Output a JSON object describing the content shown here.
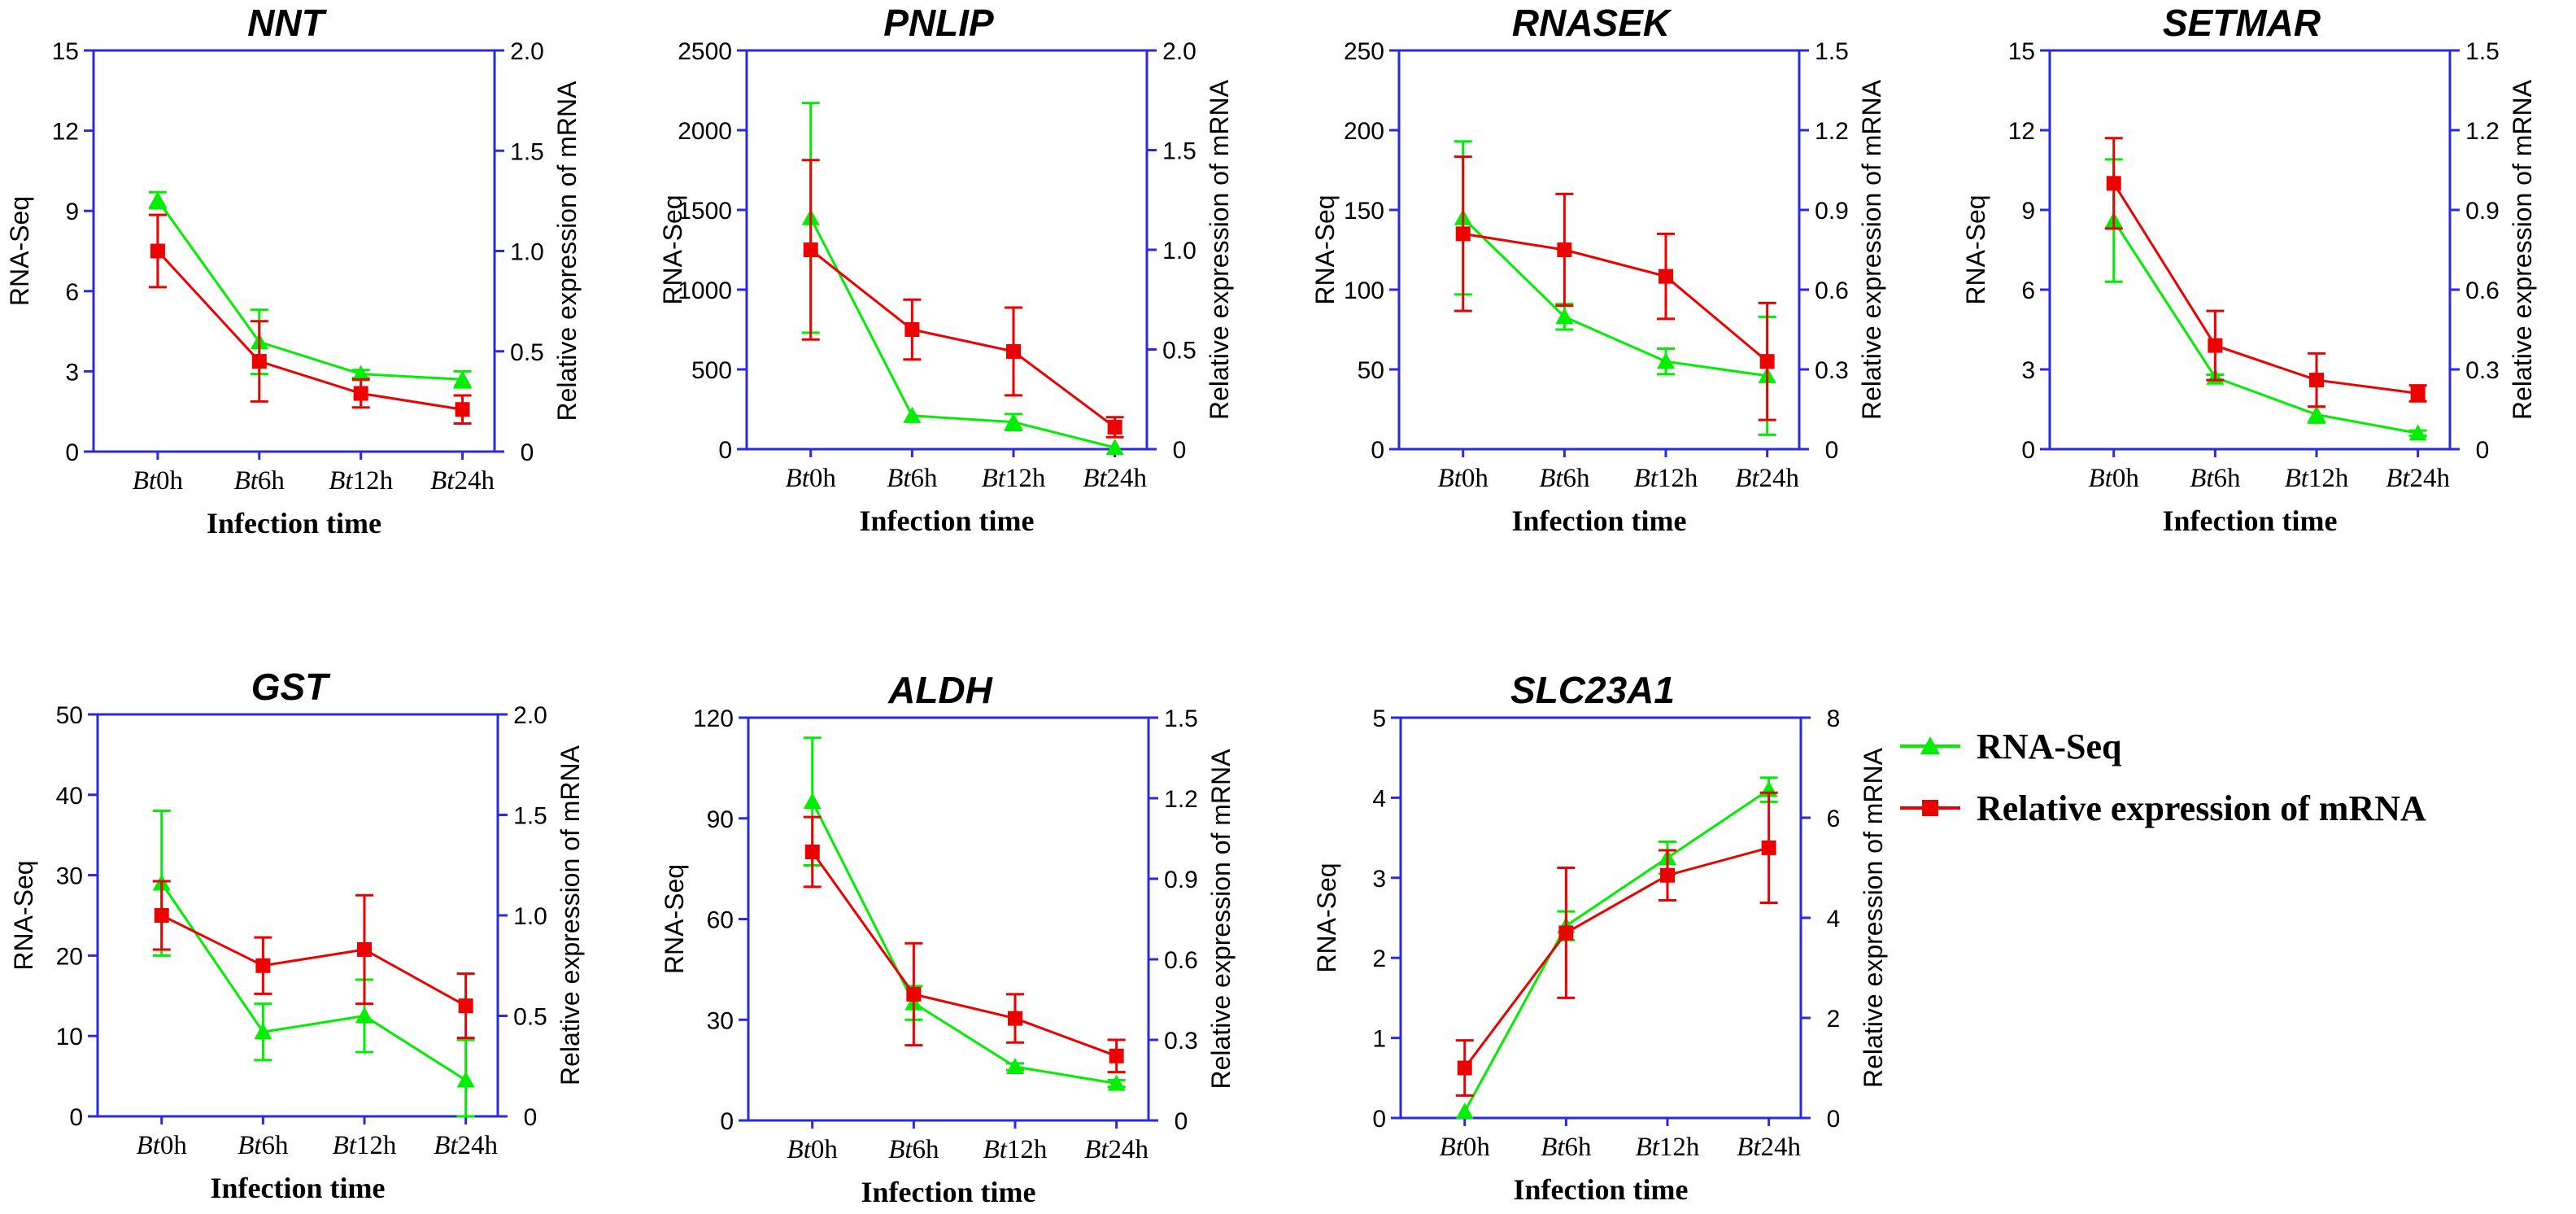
{
  "chart_data": [
    {
      "type": "line",
      "title": "NNT",
      "categories": [
        "Bt0h",
        "Bt6h",
        "Bt12h",
        "Bt24h"
      ],
      "xlabel": "Infection time",
      "ylabel": "RNA-Seq",
      "y2label": "Relative expression of mRNA",
      "ylim": [
        0,
        15
      ],
      "yticks": [
        "0",
        "3",
        "6",
        "9",
        "12",
        "15"
      ],
      "y2lim": [
        0,
        2.0
      ],
      "y2ticks": [
        "0",
        "0.5",
        "1.0",
        "1.5",
        "2.0"
      ],
      "series": [
        {
          "name": "RNA-Seq",
          "axis": "left",
          "color": "#00ee00",
          "marker": "triangle",
          "values": [
            9.4,
            4.1,
            2.9,
            2.7
          ],
          "errors": [
            0.3,
            1.2,
            0.15,
            0.3
          ]
        },
        {
          "name": "Relative expression of mRNA",
          "axis": "right",
          "color": "#ee0000",
          "marker": "square",
          "values": [
            1.0,
            0.45,
            0.29,
            0.21
          ],
          "errors": [
            0.18,
            0.2,
            0.07,
            0.07
          ]
        }
      ]
    },
    {
      "type": "line",
      "title": "PNLIP",
      "categories": [
        "Bt0h",
        "Bt6h",
        "Bt12h",
        "Bt24h"
      ],
      "xlabel": "Infection time",
      "ylabel": "RNA-Seq",
      "y2label": "Relative expression of mRNA",
      "ylim": [
        0,
        2500
      ],
      "yticks": [
        "0",
        "500",
        "1000",
        "1500",
        "2000",
        "2500"
      ],
      "y2lim": [
        0,
        2.0
      ],
      "y2ticks": [
        "0",
        "0.5",
        "1.0",
        "1.5",
        "2.0"
      ],
      "series": [
        {
          "name": "RNA-Seq",
          "axis": "left",
          "color": "#00ee00",
          "marker": "triangle",
          "values": [
            1450,
            210,
            170,
            10
          ],
          "errors": [
            720,
            0,
            50,
            0
          ]
        },
        {
          "name": "Relative expression of mRNA",
          "axis": "right",
          "color": "#ee0000",
          "marker": "square",
          "values": [
            1.0,
            0.6,
            0.49,
            0.11
          ],
          "errors": [
            0.45,
            0.15,
            0.22,
            0.05
          ]
        }
      ]
    },
    {
      "type": "line",
      "title": "RNASEK",
      "categories": [
        "Bt0h",
        "Bt6h",
        "Bt12h",
        "Bt24h"
      ],
      "xlabel": "Infection time",
      "ylabel": "RNA-Seq",
      "y2label": "Relative expression of mRNA",
      "ylim": [
        0,
        250
      ],
      "yticks": [
        "0",
        "50",
        "100",
        "150",
        "200",
        "250"
      ],
      "y2lim": [
        0,
        1.5
      ],
      "y2ticks": [
        "0",
        "0.3",
        "0.6",
        "0.9",
        "1.2",
        "1.5"
      ],
      "series": [
        {
          "name": "RNA-Seq",
          "axis": "left",
          "color": "#00ee00",
          "marker": "triangle",
          "values": [
            145,
            83,
            55,
            46
          ],
          "errors": [
            48,
            8,
            8,
            37
          ]
        },
        {
          "name": "Relative expression of mRNA",
          "axis": "right",
          "color": "#ee0000",
          "marker": "square",
          "values": [
            0.81,
            0.75,
            0.65,
            0.33
          ],
          "errors": [
            0.29,
            0.21,
            0.16,
            0.22
          ]
        }
      ]
    },
    {
      "type": "line",
      "title": "SETMAR",
      "categories": [
        "Bt0h",
        "Bt6h",
        "Bt12h",
        "Bt24h"
      ],
      "xlabel": "Infection time",
      "ylabel": "RNA-Seq",
      "y2label": "Relative expression of mRNA",
      "ylim": [
        0,
        15
      ],
      "yticks": [
        "0",
        "3",
        "6",
        "9",
        "12",
        "15"
      ],
      "y2lim": [
        0,
        1.5
      ],
      "y2ticks": [
        "0",
        "0.3",
        "0.6",
        "0.9",
        "1.2",
        "1.5"
      ],
      "series": [
        {
          "name": "RNA-Seq",
          "axis": "left",
          "color": "#00ee00",
          "marker": "triangle",
          "values": [
            8.6,
            2.7,
            1.3,
            0.6
          ],
          "errors": [
            2.3,
            0.1,
            0.3,
            0.1
          ]
        },
        {
          "name": "Relative expression of mRNA",
          "axis": "right",
          "color": "#ee0000",
          "marker": "square",
          "values": [
            1.0,
            0.39,
            0.26,
            0.21
          ],
          "errors": [
            0.17,
            0.13,
            0.1,
            0.03
          ]
        }
      ]
    },
    {
      "type": "line",
      "title": "GST",
      "categories": [
        "Bt0h",
        "Bt6h",
        "Bt12h",
        "Bt24h"
      ],
      "xlabel": "Infection time",
      "ylabel": "RNA-Seq",
      "y2label": "Relative expression of mRNA",
      "ylim": [
        0,
        50
      ],
      "yticks": [
        "0",
        "10",
        "20",
        "30",
        "40",
        "50"
      ],
      "y2lim": [
        0,
        2.0
      ],
      "y2ticks": [
        "0",
        "0.5",
        "1.0",
        "1.5",
        "2.0"
      ],
      "series": [
        {
          "name": "RNA-Seq",
          "axis": "left",
          "color": "#00ee00",
          "marker": "triangle",
          "values": [
            29,
            10.5,
            12.5,
            4.5
          ],
          "errors": [
            9,
            3.5,
            4.5,
            5
          ]
        },
        {
          "name": "Relative expression of mRNA",
          "axis": "right",
          "color": "#ee0000",
          "marker": "square",
          "values": [
            1.0,
            0.75,
            0.83,
            0.55
          ],
          "errors": [
            0.17,
            0.14,
            0.27,
            0.16
          ]
        }
      ]
    },
    {
      "type": "line",
      "title": "ALDH",
      "categories": [
        "Bt0h",
        "Bt6h",
        "Bt12h",
        "Bt24h"
      ],
      "xlabel": "Infection time",
      "ylabel": "RNA-Seq",
      "y2label": "Relative expression of mRNA",
      "ylim": [
        0,
        120
      ],
      "yticks": [
        "0",
        "30",
        "60",
        "90",
        "120"
      ],
      "y2lim": [
        0,
        1.5
      ],
      "y2ticks": [
        "0",
        "0.3",
        "0.6",
        "0.9",
        "1.2",
        "1.5"
      ],
      "series": [
        {
          "name": "RNA-Seq",
          "axis": "left",
          "color": "#00ee00",
          "marker": "triangle",
          "values": [
            95,
            35,
            16,
            11
          ],
          "errors": [
            19,
            5,
            1,
            1
          ]
        },
        {
          "name": "Relative expression of mRNA",
          "axis": "right",
          "color": "#ee0000",
          "marker": "square",
          "values": [
            1.0,
            0.47,
            0.38,
            0.24
          ],
          "errors": [
            0.13,
            0.19,
            0.09,
            0.06
          ]
        }
      ]
    },
    {
      "type": "line",
      "title": "SLC23A1",
      "categories": [
        "Bt0h",
        "Bt6h",
        "Bt12h",
        "Bt24h"
      ],
      "xlabel": "Infection time",
      "ylabel": "RNA-Seq",
      "y2label": "Relative expression of mRNA",
      "ylim": [
        0,
        5
      ],
      "yticks": [
        "0",
        "1",
        "2",
        "3",
        "4",
        "5"
      ],
      "y2lim": [
        0,
        8
      ],
      "y2ticks": [
        "0",
        "2",
        "4",
        "6",
        "8"
      ],
      "series": [
        {
          "name": "RNA-Seq",
          "axis": "left",
          "color": "#00ee00",
          "marker": "triangle",
          "values": [
            0.08,
            2.4,
            3.25,
            4.1
          ],
          "errors": [
            0,
            0.18,
            0.2,
            0.15
          ]
        },
        {
          "name": "Relative expression of mRNA",
          "axis": "right",
          "color": "#ee0000",
          "marker": "square",
          "values": [
            1.0,
            3.7,
            4.85,
            5.4
          ],
          "errors": [
            0.55,
            1.3,
            0.5,
            1.1
          ]
        }
      ]
    }
  ],
  "legend": {
    "items": [
      {
        "label": "RNA-Seq",
        "color": "#00ee00",
        "marker": "triangle"
      },
      {
        "label": "Relative expression of mRNA",
        "color": "#ee0000",
        "marker": "square"
      }
    ]
  },
  "colors": {
    "axis": "#2a2ae0",
    "text": "#000000"
  }
}
